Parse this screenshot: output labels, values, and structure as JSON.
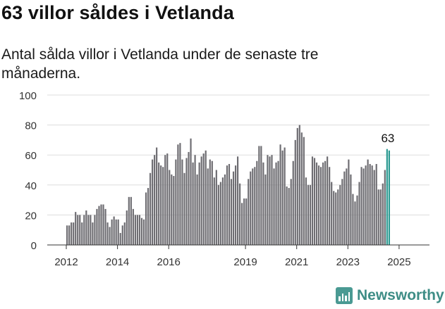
{
  "header": {
    "title": "63 villor såldes i Vetlanda",
    "subtitle": "Antal sålda villor i Vetlanda under de senaste tre månaderna."
  },
  "brand": {
    "name": "Newsworthy",
    "color": "#3e8d86"
  },
  "colors": {
    "bar": "#6e6d72",
    "highlight": "#2a9a91",
    "grid": "#dddddd",
    "axis": "#333333"
  },
  "chart_data": {
    "type": "bar",
    "title": "",
    "xlabel": "",
    "ylabel": "",
    "ylim": [
      0,
      100
    ],
    "yticks": [
      0,
      20,
      40,
      60,
      80,
      100
    ],
    "xtick_labels": [
      "2012",
      "2014",
      "2016",
      "2019",
      "2021",
      "2023",
      "2025"
    ],
    "xtick_positions": [
      2012.0,
      2014.0,
      2016.0,
      2019.0,
      2021.0,
      2023.0,
      2025.0
    ],
    "grid": true,
    "highlight_label": "63",
    "series_start": 2012.0,
    "values": [
      13,
      13,
      15,
      15,
      22,
      20,
      20,
      15,
      20,
      23,
      20,
      20,
      15,
      20,
      24,
      26,
      27,
      27,
      24,
      15,
      12,
      17,
      19,
      17,
      17,
      8,
      13,
      15,
      23,
      32,
      32,
      24,
      20,
      20,
      20,
      18,
      17,
      35,
      38,
      48,
      57,
      60,
      65,
      55,
      53,
      52,
      60,
      61,
      50,
      47,
      46,
      57,
      67,
      68,
      57,
      48,
      58,
      62,
      71,
      55,
      60,
      47,
      55,
      59,
      61,
      63,
      51,
      57,
      56,
      45,
      50,
      40,
      42,
      45,
      47,
      53,
      54,
      44,
      49,
      53,
      59,
      41,
      28,
      31,
      31,
      44,
      49,
      51,
      52,
      56,
      66,
      66,
      55,
      47,
      60,
      59,
      60,
      51,
      55,
      56,
      67,
      63,
      65,
      39,
      38,
      44,
      56,
      70,
      78,
      80,
      75,
      72,
      45,
      40,
      40,
      59,
      58,
      55,
      53,
      52,
      55,
      56,
      59,
      52,
      42,
      36,
      35,
      37,
      40,
      44,
      49,
      51,
      57,
      47,
      34,
      29,
      33,
      42,
      52,
      51,
      53,
      57,
      54,
      53,
      50,
      54,
      37,
      37,
      41,
      50,
      64,
      63
    ],
    "highlight_count": 2
  }
}
